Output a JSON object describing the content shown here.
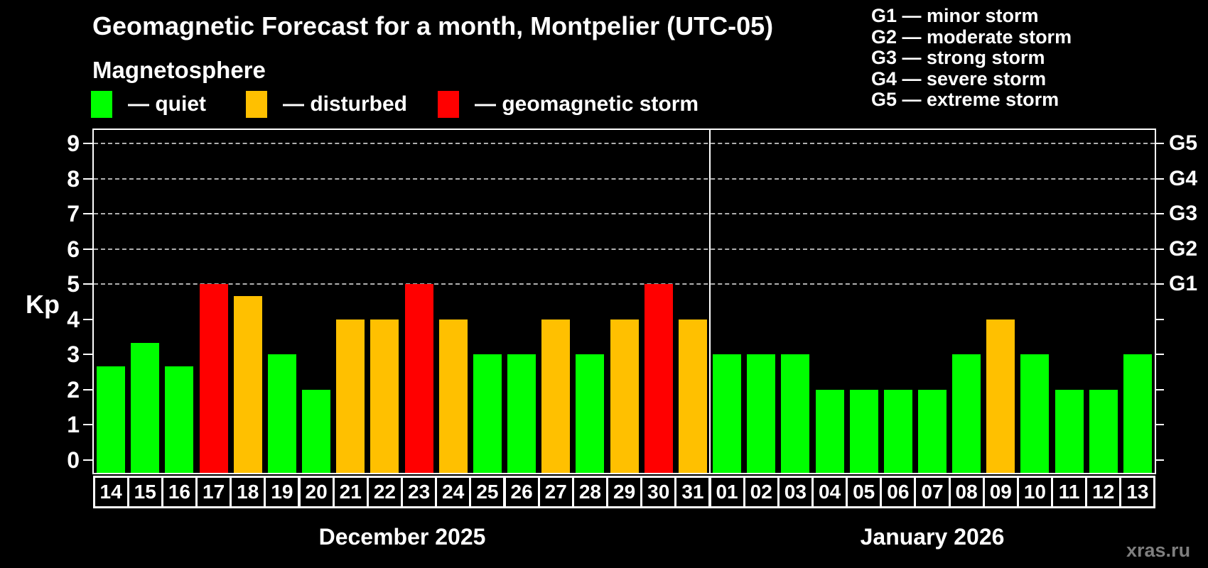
{
  "chart": {
    "title": "Geomagnetic Forecast for a month, Montpelier (UTC-05)",
    "subtitle": "Magnetosphere"
  },
  "legend": {
    "items": [
      {
        "key": "quiet",
        "label": "— quiet"
      },
      {
        "key": "disturbed",
        "label": "— disturbed"
      },
      {
        "key": "storm",
        "label": "— geomagnetic storm"
      }
    ]
  },
  "g_legend": {
    "items": [
      "G1 — minor storm",
      "G2 — moderate storm",
      "G3 — strong storm",
      "G4 — severe storm",
      "G5 — extreme storm"
    ]
  },
  "axis": {
    "kp_label": "Kp",
    "y_ticks": [
      "0",
      "1",
      "2",
      "3",
      "4",
      "5",
      "6",
      "7",
      "8",
      "9"
    ],
    "g_scale": [
      {
        "label": "G5",
        "kp": 9
      },
      {
        "label": "G4",
        "kp": 8
      },
      {
        "label": "G3",
        "kp": 7
      },
      {
        "label": "G2",
        "kp": 6
      },
      {
        "label": "G1",
        "kp": 5
      }
    ]
  },
  "colors": {
    "quiet": "#00ff00",
    "disturbed": "#ffc000",
    "storm": "#ff0000",
    "axis": "#ffffff",
    "grid": "#b0b0b0",
    "watermark": "#7e7e7e"
  },
  "watermark": "xras.ru",
  "chart_data": {
    "type": "bar",
    "title": "Geomagnetic Forecast for a month, Montpelier (UTC-05)",
    "ylabel": "Kp",
    "ylim": [
      0,
      9
    ],
    "grid_levels": [
      5,
      6,
      7,
      8,
      9
    ],
    "legend_position": "top",
    "months": [
      {
        "label": "December 2025",
        "days": [
          {
            "day": "14",
            "kp": 2.67,
            "status": "quiet"
          },
          {
            "day": "15",
            "kp": 3.33,
            "status": "quiet"
          },
          {
            "day": "16",
            "kp": 2.67,
            "status": "quiet"
          },
          {
            "day": "17",
            "kp": 5,
            "status": "storm"
          },
          {
            "day": "18",
            "kp": 4.67,
            "status": "disturbed"
          },
          {
            "day": "19",
            "kp": 3,
            "status": "quiet"
          },
          {
            "day": "20",
            "kp": 2,
            "status": "quiet"
          },
          {
            "day": "21",
            "kp": 4,
            "status": "disturbed"
          },
          {
            "day": "22",
            "kp": 4,
            "status": "disturbed"
          },
          {
            "day": "23",
            "kp": 5,
            "status": "storm"
          },
          {
            "day": "24",
            "kp": 4,
            "status": "disturbed"
          },
          {
            "day": "25",
            "kp": 3,
            "status": "quiet"
          },
          {
            "day": "26",
            "kp": 3,
            "status": "quiet"
          },
          {
            "day": "27",
            "kp": 4,
            "status": "disturbed"
          },
          {
            "day": "28",
            "kp": 3,
            "status": "quiet"
          },
          {
            "day": "29",
            "kp": 4,
            "status": "disturbed"
          },
          {
            "day": "30",
            "kp": 5,
            "status": "storm"
          },
          {
            "day": "31",
            "kp": 4,
            "status": "disturbed"
          }
        ]
      },
      {
        "label": "January 2026",
        "days": [
          {
            "day": "01",
            "kp": 3,
            "status": "quiet"
          },
          {
            "day": "02",
            "kp": 3,
            "status": "quiet"
          },
          {
            "day": "03",
            "kp": 3,
            "status": "quiet"
          },
          {
            "day": "04",
            "kp": 2,
            "status": "quiet"
          },
          {
            "day": "05",
            "kp": 2,
            "status": "quiet"
          },
          {
            "day": "06",
            "kp": 2,
            "status": "quiet"
          },
          {
            "day": "07",
            "kp": 2,
            "status": "quiet"
          },
          {
            "day": "08",
            "kp": 3,
            "status": "quiet"
          },
          {
            "day": "09",
            "kp": 4,
            "status": "disturbed"
          },
          {
            "day": "10",
            "kp": 3,
            "status": "quiet"
          },
          {
            "day": "11",
            "kp": 2,
            "status": "quiet"
          },
          {
            "day": "12",
            "kp": 2,
            "status": "quiet"
          },
          {
            "day": "13",
            "kp": 3,
            "status": "quiet"
          }
        ]
      }
    ]
  }
}
